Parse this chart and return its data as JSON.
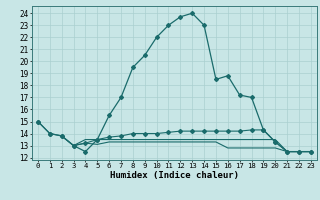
{
  "xlabel": "Humidex (Indice chaleur)",
  "bg_color": "#c8e6e6",
  "line_color": "#1a6b6b",
  "grid_color": "#aad0d0",
  "xlim": [
    -0.5,
    23.5
  ],
  "ylim": [
    11.8,
    24.6
  ],
  "yticks": [
    12,
    13,
    14,
    15,
    16,
    17,
    18,
    19,
    20,
    21,
    22,
    23,
    24
  ],
  "xticks": [
    0,
    1,
    2,
    3,
    4,
    5,
    6,
    7,
    8,
    9,
    10,
    11,
    12,
    13,
    14,
    15,
    16,
    17,
    18,
    19,
    20,
    21,
    22,
    23
  ],
  "main_x": [
    0,
    1,
    2,
    3,
    4,
    5,
    6,
    7,
    8,
    9,
    10,
    11,
    12,
    13,
    14,
    15,
    16,
    17,
    18,
    19,
    20,
    21,
    22,
    23
  ],
  "main_y": [
    15.0,
    14.0,
    13.8,
    13.0,
    12.5,
    13.5,
    15.5,
    17.0,
    19.5,
    20.5,
    22.0,
    23.0,
    23.7,
    24.0,
    23.0,
    18.5,
    18.8,
    17.2,
    17.0,
    14.3,
    13.3,
    12.5,
    12.5,
    12.5
  ],
  "flat1_x": [
    0,
    1,
    2,
    3,
    4,
    5,
    6,
    7,
    8,
    9,
    10,
    11,
    12,
    13,
    14,
    15,
    16,
    17,
    18,
    19,
    20,
    21,
    22,
    23
  ],
  "flat1_y": [
    15.0,
    14.0,
    13.8,
    13.0,
    13.2,
    13.5,
    13.7,
    13.8,
    14.0,
    14.0,
    14.0,
    14.1,
    14.2,
    14.2,
    14.2,
    14.2,
    14.2,
    14.2,
    14.3,
    14.3,
    13.3,
    12.5,
    12.5,
    12.5
  ],
  "flat2_x": [
    2,
    3,
    4,
    5,
    6,
    7,
    8,
    9,
    10,
    11,
    12,
    13,
    14,
    15,
    16,
    17,
    18,
    19,
    20,
    21,
    22,
    23
  ],
  "flat2_y": [
    13.8,
    13.0,
    13.2,
    13.1,
    13.3,
    13.3,
    13.3,
    13.3,
    13.3,
    13.3,
    13.3,
    13.3,
    13.3,
    13.3,
    12.8,
    12.8,
    12.8,
    12.8,
    12.8,
    12.5,
    12.5,
    12.5
  ],
  "flat3_x": [
    3,
    4,
    5,
    6,
    7,
    8,
    9,
    10,
    11,
    12,
    13,
    14,
    15,
    16,
    17,
    18,
    19,
    20,
    21,
    22,
    23
  ],
  "flat3_y": [
    13.0,
    13.5,
    13.5,
    13.5,
    13.5,
    13.5,
    13.5,
    13.5,
    13.5,
    13.5,
    13.5,
    13.5,
    13.5,
    13.5,
    13.5,
    13.5,
    13.5,
    13.5,
    12.5,
    12.5,
    12.5
  ]
}
